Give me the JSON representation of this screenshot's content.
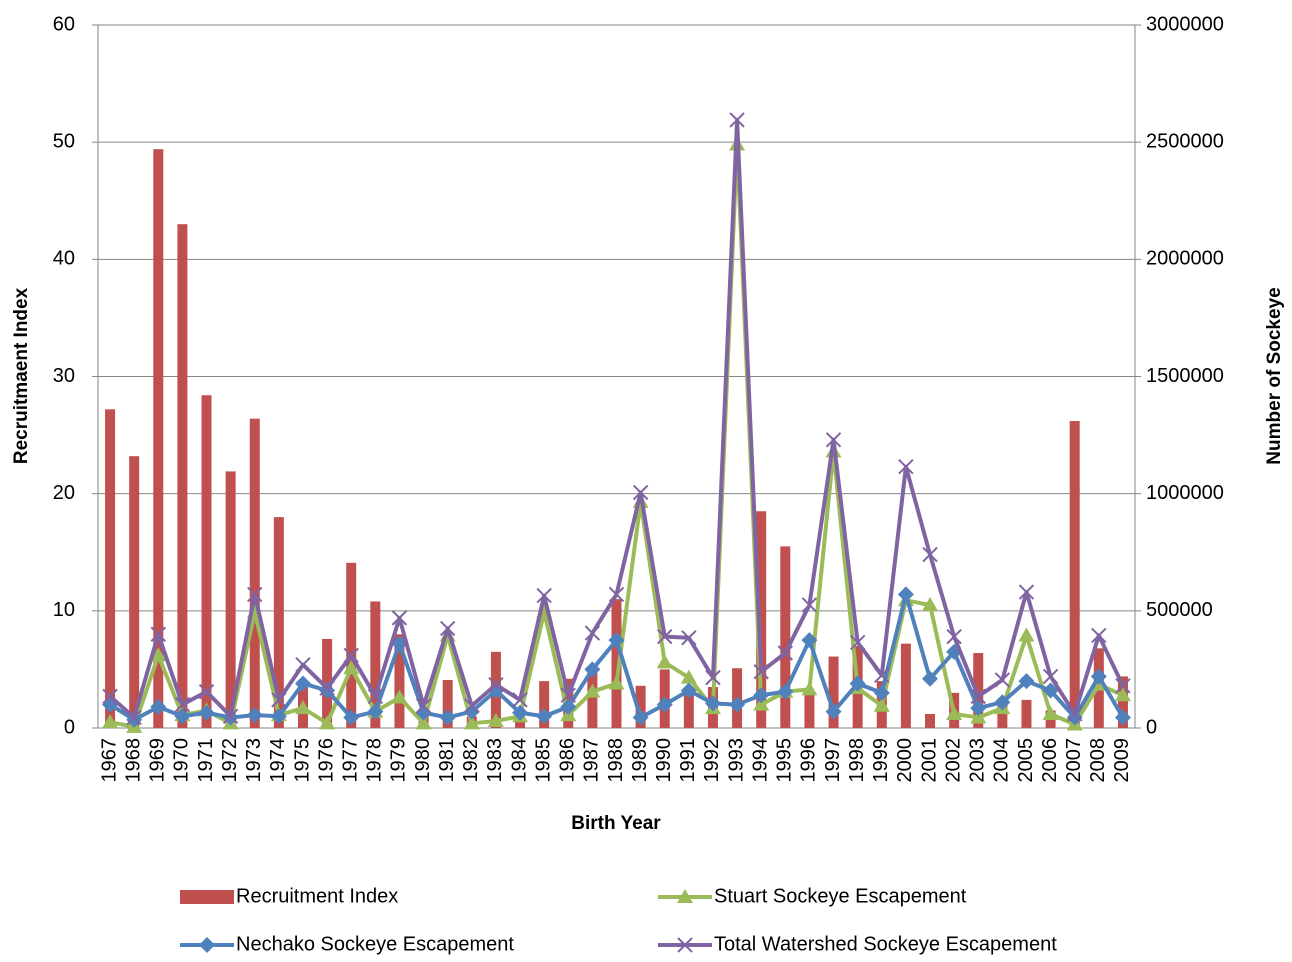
{
  "chart_data": {
    "type": "combo",
    "x_label": "Birth Year",
    "y_label": "Recruitmaent Index",
    "y2_label": "Number of Sockeye",
    "categories": [
      "1967",
      "1968",
      "1969",
      "1970",
      "1971",
      "1972",
      "1973",
      "1974",
      "1975",
      "1976",
      "1977",
      "1978",
      "1979",
      "1980",
      "1981",
      "1982",
      "1983",
      "1984",
      "1985",
      "1986",
      "1987",
      "1988",
      "1989",
      "1990",
      "1991",
      "1992",
      "1993",
      "1994",
      "1995",
      "1996",
      "1997",
      "1998",
      "1999",
      "2000",
      "2001",
      "2002",
      "2003",
      "2004",
      "2005",
      "2006",
      "2007",
      "2008",
      "2009"
    ],
    "ylim": [
      0,
      60
    ],
    "yticks": [
      0,
      10,
      20,
      30,
      40,
      50,
      60
    ],
    "y2lim": [
      0,
      3000000
    ],
    "y2ticks": [
      0,
      500000,
      1000000,
      1500000,
      2000000,
      2500000,
      3000000
    ],
    "grid": true,
    "series": [
      {
        "name": "Recruitment Index",
        "type": "bar",
        "color": "#c0504d",
        "values": [
          27.2,
          23.2,
          49.4,
          43,
          28.4,
          21.9,
          26.4,
          18,
          3.8,
          7.6,
          14.1,
          10.8,
          8,
          1.5,
          4.1,
          1,
          6.5,
          1,
          4,
          4.2,
          5,
          11,
          3.6,
          5,
          3,
          3.5,
          5.1,
          18.5,
          15.5,
          3,
          6.1,
          7,
          4,
          7.2,
          1.2,
          3,
          6.4,
          2,
          2.4,
          1.5,
          26.2,
          6.8,
          4.4
        ]
      },
      {
        "name": "Stuart Sockeye Escapement",
        "type": "line",
        "marker": "triangle",
        "axis": "y2",
        "color": "#9bbb59",
        "values": [
          25000,
          5000,
          310000,
          55000,
          75000,
          20000,
          495000,
          55000,
          85000,
          20000,
          255000,
          70000,
          130000,
          20000,
          395000,
          20000,
          30000,
          50000,
          495000,
          55000,
          155000,
          190000,
          965000,
          280000,
          215000,
          85000,
          2490000,
          100000,
          155000,
          165000,
          1180000,
          170000,
          95000,
          545000,
          525000,
          60000,
          45000,
          85000,
          395000,
          60000,
          15000,
          185000,
          140000
        ]
      },
      {
        "name": "Nechako Sockeye Escapement",
        "type": "line",
        "marker": "diamond",
        "axis": "y2",
        "color": "#4f81bd",
        "values": [
          100000,
          35000,
          90000,
          50000,
          65000,
          45000,
          55000,
          50000,
          190000,
          160000,
          45000,
          70000,
          360000,
          65000,
          45000,
          70000,
          160000,
          65000,
          50000,
          90000,
          250000,
          375000,
          45000,
          100000,
          160000,
          105000,
          100000,
          140000,
          155000,
          375000,
          70000,
          190000,
          150000,
          570000,
          210000,
          325000,
          85000,
          110000,
          200000,
          160000,
          45000,
          220000,
          45000
        ]
      },
      {
        "name": "Total Watershed Sockeye Escapement",
        "type": "line",
        "marker": "x",
        "axis": "y2",
        "color": "#8064a2",
        "values": [
          135000,
          45000,
          400000,
          100000,
          155000,
          50000,
          570000,
          120000,
          270000,
          170000,
          310000,
          135000,
          470000,
          95000,
          425000,
          95000,
          185000,
          120000,
          565000,
          140000,
          405000,
          570000,
          1005000,
          390000,
          385000,
          215000,
          2595000,
          240000,
          320000,
          525000,
          1230000,
          365000,
          225000,
          1115000,
          740000,
          390000,
          135000,
          205000,
          580000,
          220000,
          60000,
          395000,
          180000
        ]
      }
    ]
  }
}
